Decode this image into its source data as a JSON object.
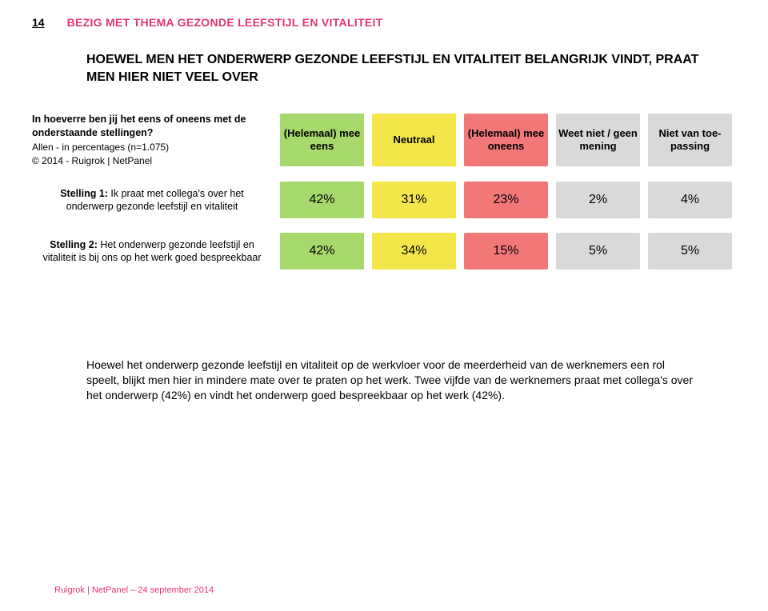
{
  "page_number": "14",
  "section_title": "BEZIG MET THEMA GEZONDE LEEFSTIJL EN VITALITEIT",
  "section_title_color": "#e63670",
  "main_title": "HOEWEL MEN HET ONDERWERP GEZONDE LEEFSTIJL EN VITALITEIT BELANGRIJK VINDT, PRAAT MEN HIER NIET VEEL OVER",
  "question_lead": "In hoeverre ben jij het eens of oneens met de onderstaande stellingen?",
  "question_sub1": "Allen - in percentages (n=1.075)",
  "question_sub2": "© 2014 - Ruigrok | NetPanel",
  "columns": [
    {
      "label": "(Helemaal) mee eens",
      "bg": "#a6d86b"
    },
    {
      "label": "Neutraal",
      "bg": "#f4e64a"
    },
    {
      "label": "(Helemaal) mee oneens",
      "bg": "#f27777"
    },
    {
      "label": "Weet niet / geen mening",
      "bg": "#d9d9d9"
    },
    {
      "label": "Niet van toe­passing",
      "bg": "#d9d9d9"
    }
  ],
  "rows": [
    {
      "stmt_bold": "Stelling 1:",
      "stmt_rest": " Ik praat met collega's over het onderwerp gezonde leefstijl en vitaliteit",
      "cells": [
        {
          "value": "42%",
          "bg": "#a6d86b"
        },
        {
          "value": "31%",
          "bg": "#f4e64a"
        },
        {
          "value": "23%",
          "bg": "#f27777"
        },
        {
          "value": "2%",
          "bg": "#d9d9d9"
        },
        {
          "value": "4%",
          "bg": "#d9d9d9"
        }
      ]
    },
    {
      "stmt_bold": "Stelling 2:",
      "stmt_rest": " Het onderwerp gezonde leefstijl en vitaliteit is bij ons op het werk goed bespreekbaar",
      "cells": [
        {
          "value": "42%",
          "bg": "#a6d86b"
        },
        {
          "value": "34%",
          "bg": "#f4e64a"
        },
        {
          "value": "15%",
          "bg": "#f27777"
        },
        {
          "value": "5%",
          "bg": "#d9d9d9"
        },
        {
          "value": "5%",
          "bg": "#d9d9d9"
        }
      ]
    }
  ],
  "body_text": "Hoewel het onderwerp gezonde leefstijl en vitaliteit op de werkvloer voor de meerderheid van de werknemers een rol speelt, blijkt men hier in mindere mate over te praten op het werk. Twee vijfde van de werknemers praat met collega's over het onderwerp (42%) en vindt het onderwerp goed bespreekbaar op het werk (42%).",
  "footer": "Ruigrok | NetPanel – 24 september 2014",
  "footer_color": "#e63670"
}
